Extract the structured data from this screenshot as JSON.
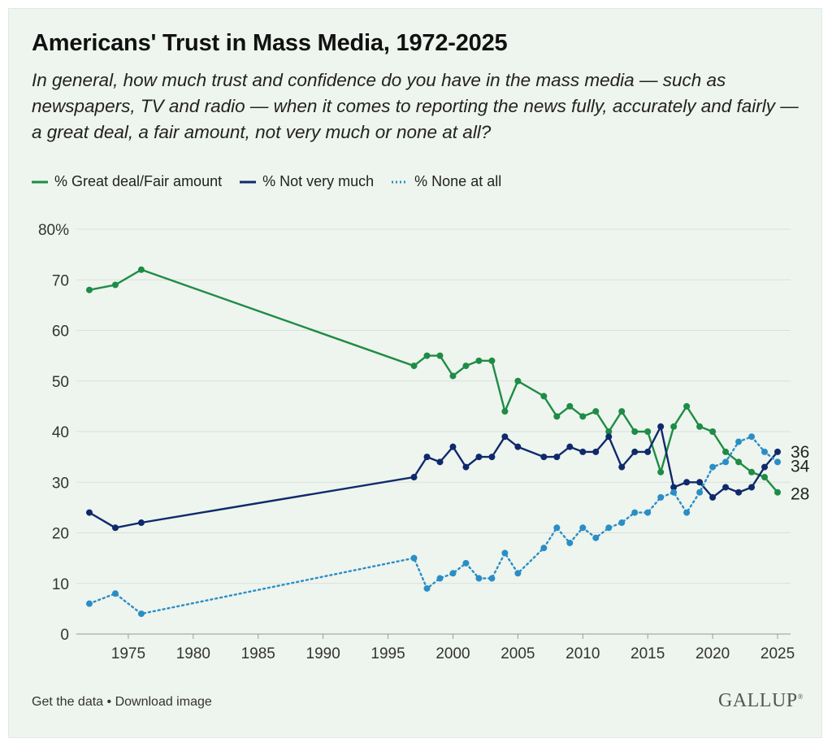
{
  "header": {
    "title": "Americans' Trust in Mass Media, 1972-2025",
    "subtitle": "In general, how much trust and confidence do you have in the mass media — such as newspapers, TV and radio — when it comes to reporting the news fully, accurately and fairly — a great deal, a fair amount, not very much or none at all?"
  },
  "footer": {
    "get_data": "Get the data",
    "separator": "•",
    "download": "Download image",
    "logo": "GALLUP"
  },
  "colors": {
    "great_deal": "#1e8c45",
    "not_very_much": "#0e2a6b",
    "none": "#2a8ec6",
    "grid": "#d9dfd9",
    "axis_text": "#333333"
  },
  "chart_data": {
    "type": "line",
    "ylim": [
      0,
      80
    ],
    "xlim": [
      1971,
      2026
    ],
    "yticks": [
      "0",
      "10",
      "20",
      "30",
      "40",
      "50",
      "60",
      "70",
      "80%"
    ],
    "ytick_values": [
      0,
      10,
      20,
      30,
      40,
      50,
      60,
      70,
      80
    ],
    "xticks": [
      1975,
      1980,
      1985,
      1990,
      1995,
      2000,
      2005,
      2010,
      2015,
      2020,
      2025
    ],
    "grid": true,
    "legend_position": "top-left",
    "end_labels": [
      "36",
      "34",
      "28"
    ],
    "x": [
      1972,
      1974,
      1976,
      1997,
      1998,
      1999,
      2000,
      2001,
      2002,
      2003,
      2004,
      2005,
      2007,
      2008,
      2009,
      2010,
      2011,
      2012,
      2013,
      2014,
      2015,
      2016,
      2017,
      2018,
      2019,
      2020,
      2021,
      2022,
      2023,
      2024,
      2025
    ],
    "series": [
      {
        "name": "% Great deal/Fair amount",
        "style": "solid",
        "values": [
          68,
          69,
          72,
          53,
          55,
          55,
          51,
          53,
          54,
          54,
          44,
          50,
          47,
          43,
          45,
          43,
          44,
          40,
          44,
          40,
          40,
          32,
          41,
          45,
          41,
          40,
          36,
          34,
          32,
          31,
          28
        ]
      },
      {
        "name": "% Not very much",
        "style": "solid",
        "values": [
          24,
          21,
          22,
          31,
          35,
          34,
          37,
          33,
          35,
          35,
          39,
          37,
          35,
          35,
          37,
          36,
          36,
          39,
          33,
          36,
          36,
          41,
          29,
          30,
          30,
          27,
          29,
          28,
          29,
          33,
          36
        ]
      },
      {
        "name": "% None at all",
        "style": "dotted",
        "values": [
          6,
          8,
          4,
          15,
          9,
          11,
          12,
          14,
          11,
          11,
          16,
          12,
          17,
          21,
          18,
          21,
          19,
          21,
          22,
          24,
          24,
          27,
          28,
          24,
          28,
          33,
          34,
          38,
          39,
          36,
          34
        ]
      }
    ]
  }
}
